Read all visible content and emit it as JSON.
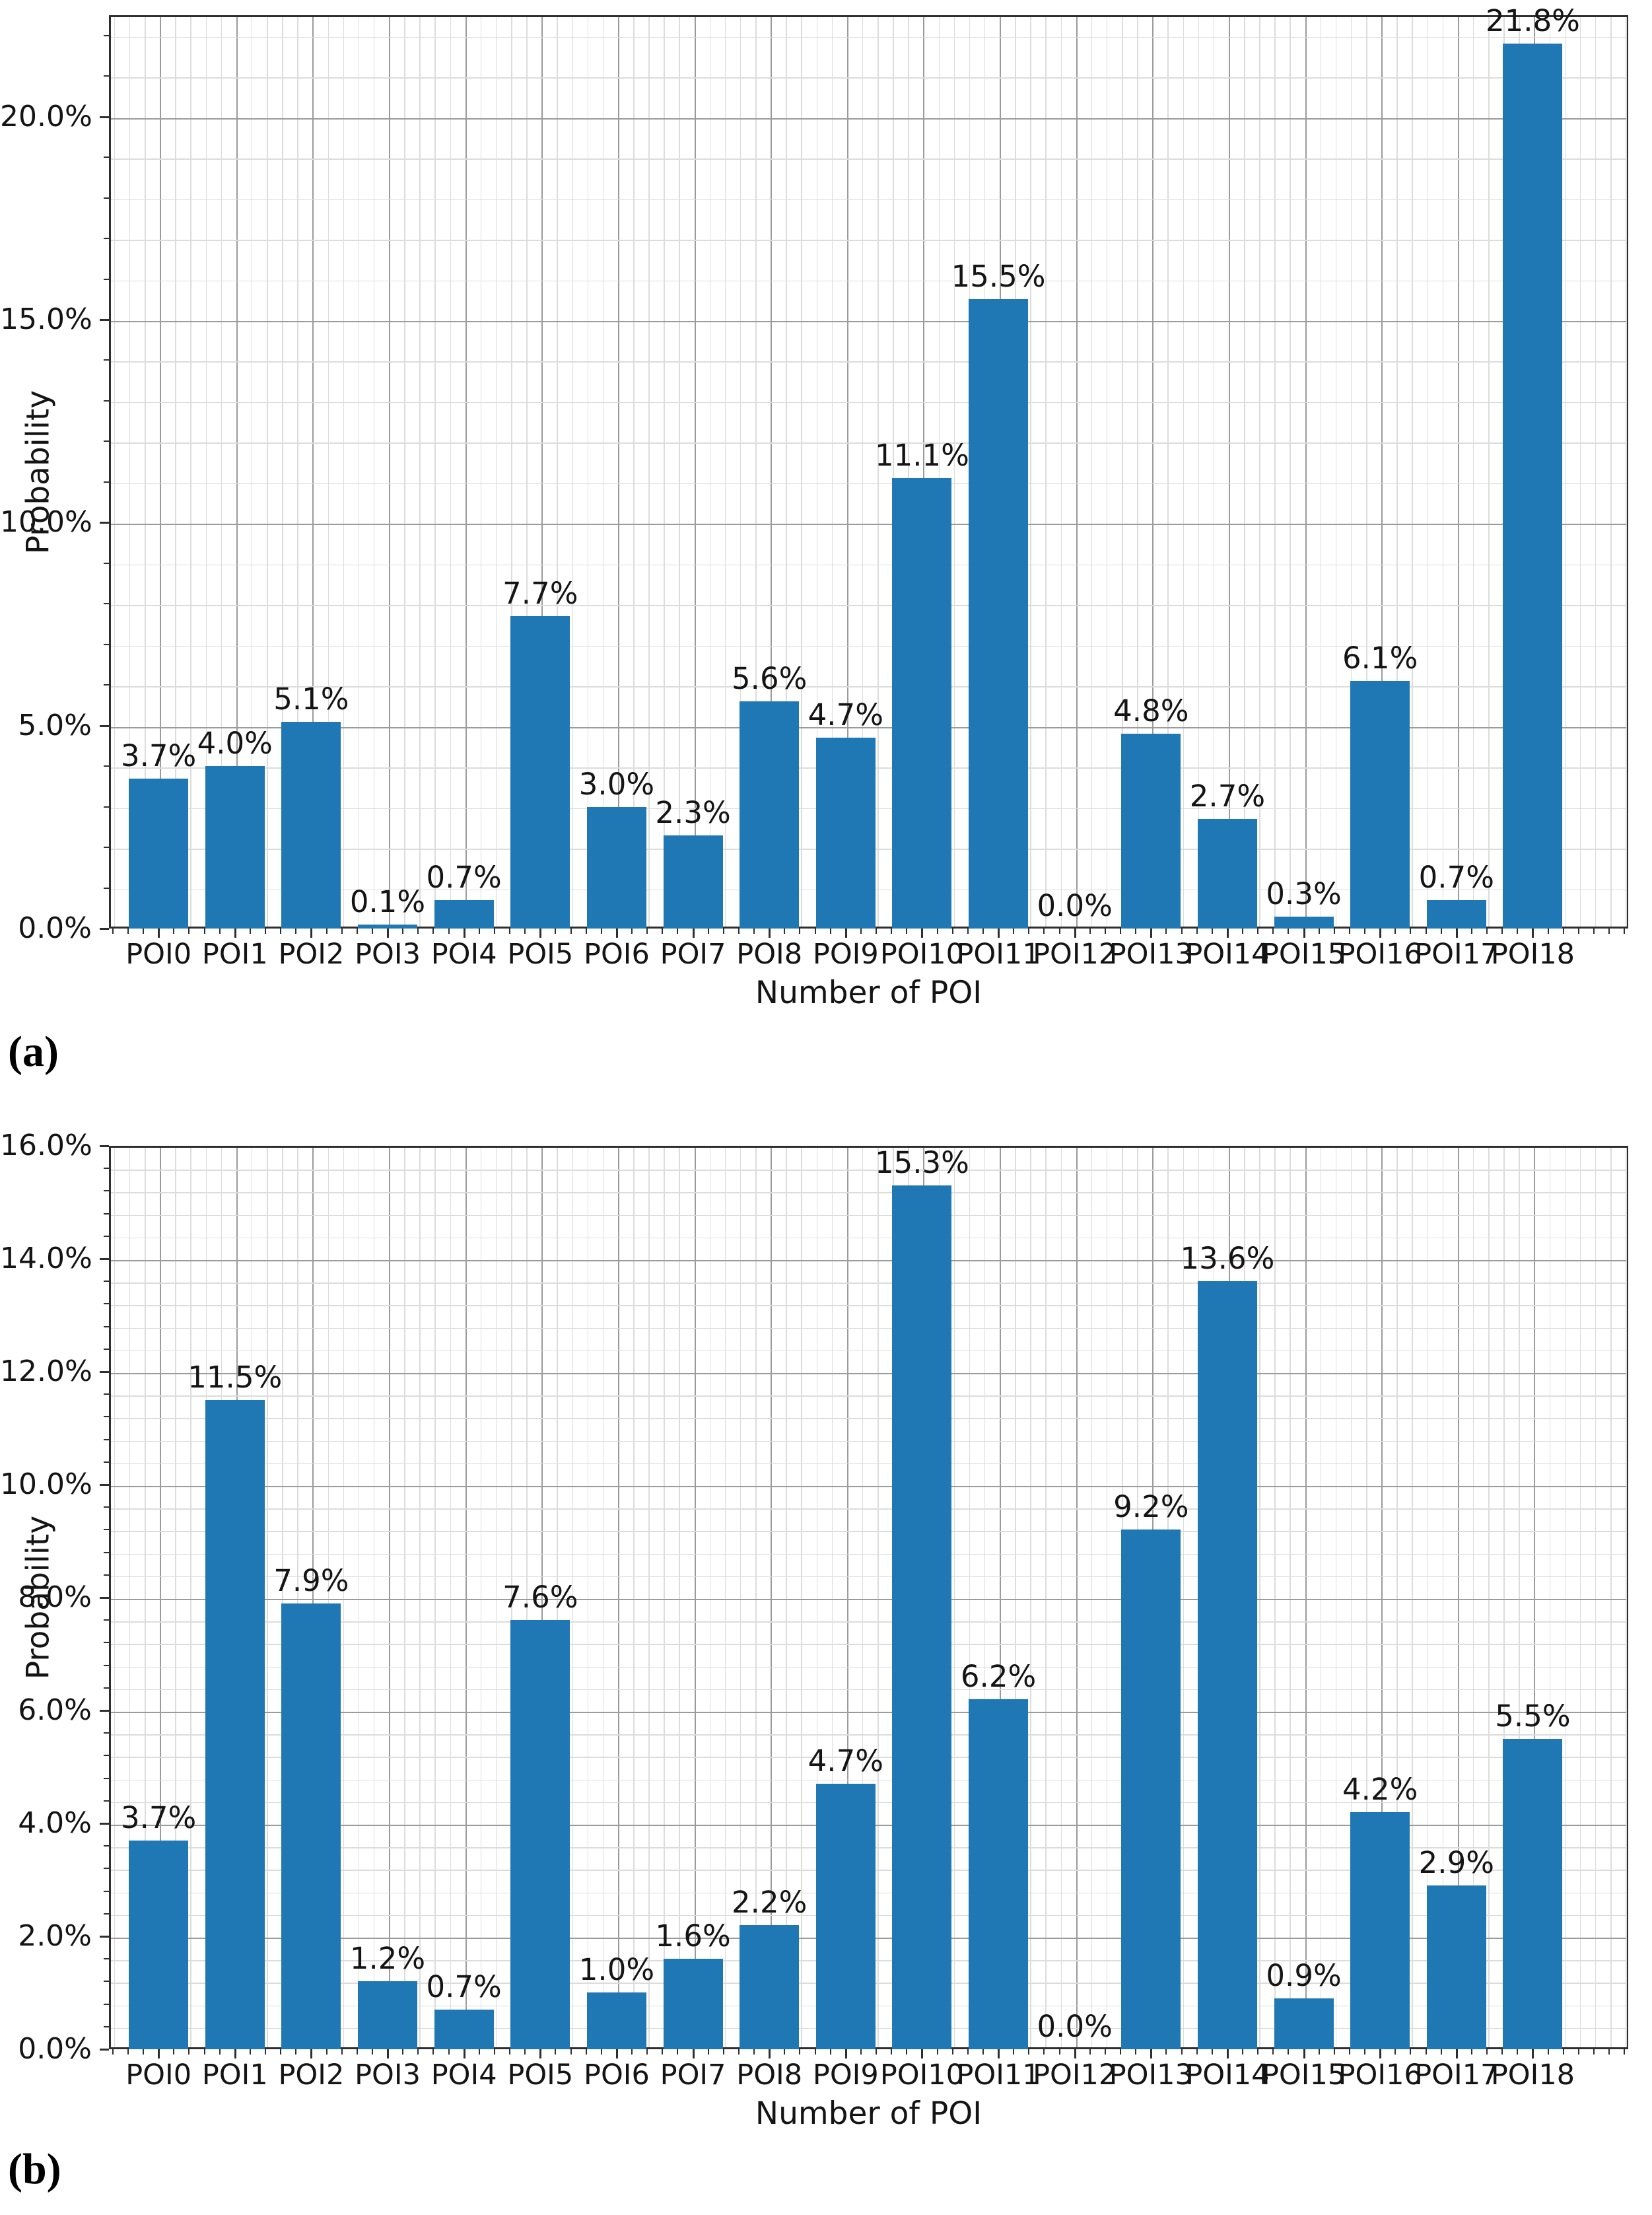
{
  "figure": {
    "background": "#ffffff"
  },
  "colors": {
    "bar": "#1f77b4",
    "grid_major": "#9b9b9b",
    "grid_minor": "#dcdcdc",
    "spine": "#2e2e2e",
    "text": "#141414"
  },
  "chart_data": [
    {
      "type": "bar",
      "caption": "(a)",
      "title": "",
      "xlabel": "Number of POI",
      "ylabel": "Probability",
      "categories": [
        "POI0",
        "POI1",
        "POI2",
        "POI3",
        "POI4",
        "POI5",
        "POI6",
        "POI7",
        "POI8",
        "POI9",
        "POI10",
        "POI11",
        "POI12",
        "POI13",
        "POI14",
        "POI15",
        "POI16",
        "POI17",
        "POI18"
      ],
      "values": [
        3.7,
        4.0,
        5.1,
        0.1,
        0.7,
        7.7,
        3.0,
        2.3,
        5.6,
        4.7,
        11.1,
        15.5,
        0.0,
        4.8,
        2.7,
        0.3,
        6.1,
        0.7,
        21.8
      ],
      "bar_labels": [
        "3.7%",
        "4.0%",
        "5.1%",
        "0.1%",
        "0.7%",
        "7.7%",
        "3.0%",
        "2.3%",
        "5.6%",
        "4.7%",
        "11.1%",
        "15.5%",
        "0.0%",
        "4.8%",
        "2.7%",
        "0.3%",
        "6.1%",
        "0.7%",
        "21.8%"
      ],
      "ylim": [
        0,
        22.5
      ],
      "ytick_values": [
        0,
        5,
        10,
        15,
        20
      ],
      "ytick_labels": [
        "0.0%",
        "5.0%",
        "10.0%",
        "15.0%",
        "20.0%"
      ],
      "yminor_step": 1,
      "grid": "both",
      "legend": "none"
    },
    {
      "type": "bar",
      "caption": "(b)",
      "title": "",
      "xlabel": "Number of POI",
      "ylabel": "Probability",
      "categories": [
        "POI0",
        "POI1",
        "POI2",
        "POI3",
        "POI4",
        "POI5",
        "POI6",
        "POI7",
        "POI8",
        "POI9",
        "POI10",
        "POI11",
        "POI12",
        "POI13",
        "POI14",
        "POI15",
        "POI16",
        "POI17",
        "POI18"
      ],
      "values": [
        3.7,
        11.5,
        7.9,
        1.2,
        0.7,
        7.6,
        1.0,
        1.6,
        2.2,
        4.7,
        15.3,
        6.2,
        0.0,
        9.2,
        13.6,
        0.9,
        4.2,
        2.9,
        5.5
      ],
      "bar_labels": [
        "3.7%",
        "11.5%",
        "7.9%",
        "1.2%",
        "0.7%",
        "7.6%",
        "1.0%",
        "1.6%",
        "2.2%",
        "4.7%",
        "15.3%",
        "6.2%",
        "0.0%",
        "9.2%",
        "13.6%",
        "0.9%",
        "4.2%",
        "2.9%",
        "5.5%"
      ],
      "ylim": [
        0,
        16
      ],
      "ytick_values": [
        0,
        2,
        4,
        6,
        8,
        10,
        12,
        14,
        16
      ],
      "ytick_labels": [
        "0.0%",
        "2.0%",
        "4.0%",
        "6.0%",
        "8.0%",
        "10.0%",
        "12.0%",
        "14.0%",
        "16.0%"
      ],
      "yminor_step": 0.4,
      "grid": "both",
      "legend": "none"
    }
  ]
}
